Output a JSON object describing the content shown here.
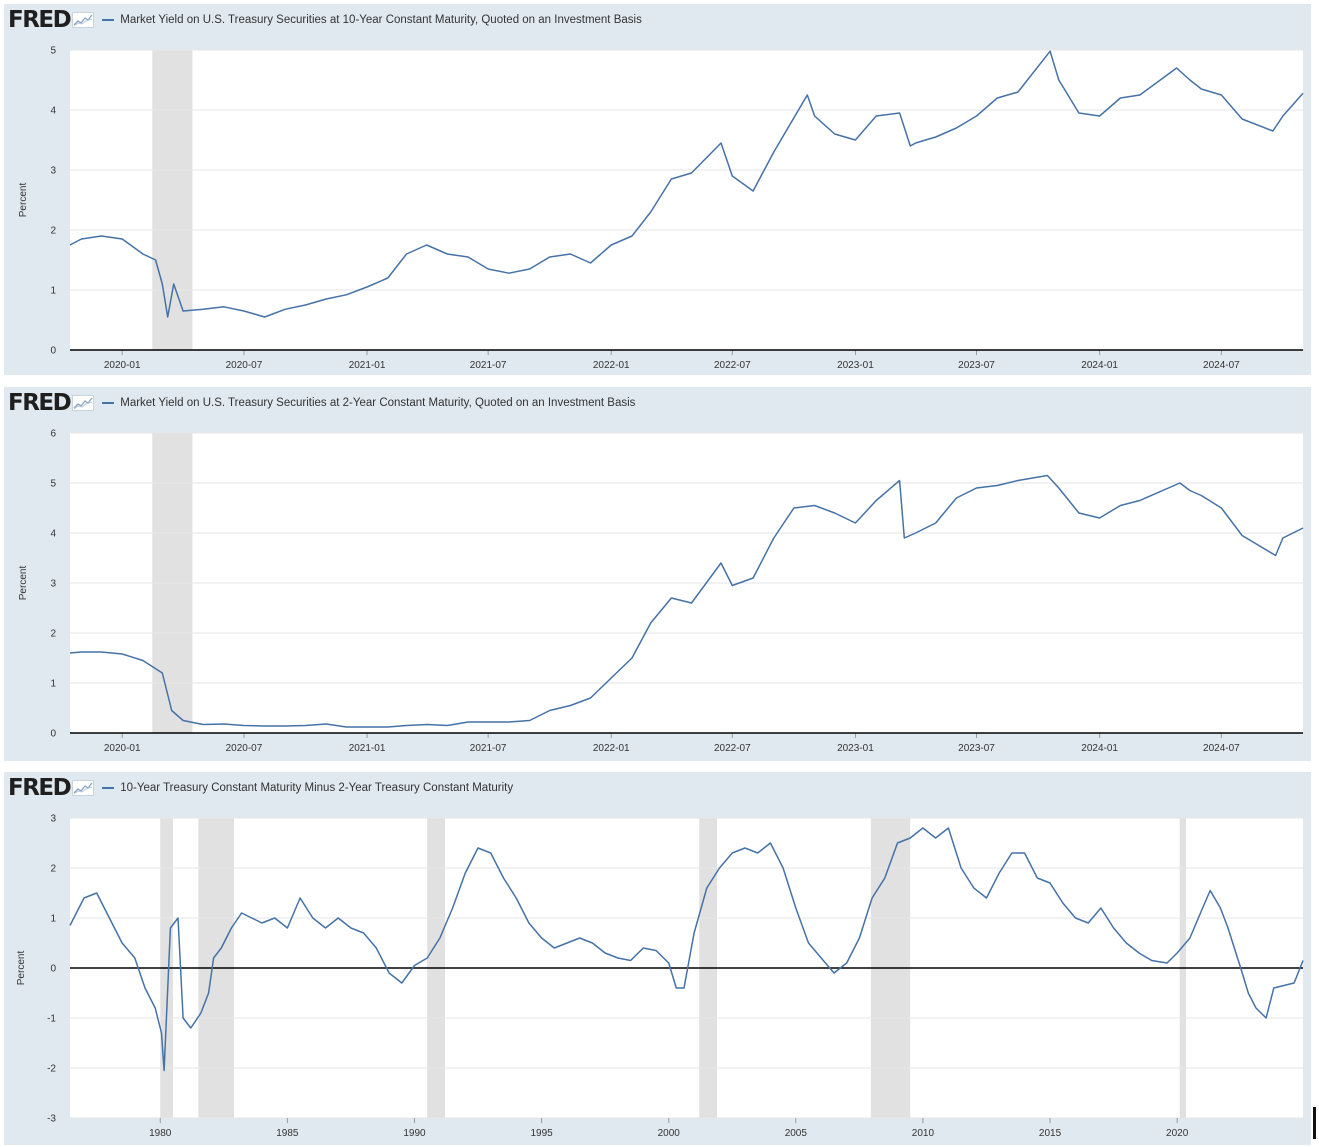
{
  "colors": {
    "panel_bg": "#e1e9f0",
    "plot_bg": "#ffffff",
    "line": "#4572a7",
    "recession": "#e1e1e1",
    "grid": "#e6e6e6",
    "axis": "#000000"
  },
  "logo": {
    "text": "FRED",
    "icon": "fred-sparkline-icon"
  },
  "chart_data": [
    {
      "type": "line",
      "title": "Market Yield on U.S. Treasury Securities at 10-Year Constant Maturity, Quoted on an Investment Basis",
      "ylabel": "Percent",
      "ylim": [
        0,
        5
      ],
      "y_ticks": [
        "0",
        "1",
        "2",
        "3",
        "4",
        "5"
      ],
      "x_ticks": [
        "2020-01",
        "2020-07",
        "2021-01",
        "2021-07",
        "2022-01",
        "2022-07",
        "2023-01",
        "2023-07",
        "2024-01",
        "2024-07"
      ],
      "xlim": [
        "2019-10-15",
        "2024-10-31"
      ],
      "recessions": [
        [
          "2020-02-15",
          "2020-04-15"
        ]
      ],
      "grid": true,
      "series": [
        {
          "name": "Market Yield on U.S. Treasury Securities at 10-Year Constant Maturity, Quoted on an Investment Basis",
          "x": [
            "2019-10-15",
            "2019-11-01",
            "2019-12-01",
            "2020-01-01",
            "2020-02-01",
            "2020-02-20",
            "2020-03-01",
            "2020-03-09",
            "2020-03-18",
            "2020-04-01",
            "2020-05-01",
            "2020-06-01",
            "2020-07-01",
            "2020-08-01",
            "2020-09-01",
            "2020-10-01",
            "2020-11-01",
            "2020-12-01",
            "2021-01-01",
            "2021-02-01",
            "2021-03-01",
            "2021-03-31",
            "2021-05-01",
            "2021-06-01",
            "2021-07-01",
            "2021-08-01",
            "2021-09-01",
            "2021-10-01",
            "2021-11-01",
            "2021-12-01",
            "2022-01-01",
            "2022-02-01",
            "2022-03-01",
            "2022-04-01",
            "2022-05-01",
            "2022-06-14",
            "2022-07-01",
            "2022-08-01",
            "2022-09-01",
            "2022-10-21",
            "2022-11-01",
            "2022-12-01",
            "2023-01-01",
            "2023-02-01",
            "2023-03-08",
            "2023-03-24",
            "2023-04-01",
            "2023-05-01",
            "2023-06-01",
            "2023-07-01",
            "2023-08-01",
            "2023-09-01",
            "2023-10-19",
            "2023-11-01",
            "2023-12-01",
            "2024-01-01",
            "2024-02-01",
            "2024-03-01",
            "2024-04-25",
            "2024-05-15",
            "2024-06-01",
            "2024-07-01",
            "2024-08-01",
            "2024-09-16",
            "2024-10-01",
            "2024-10-31"
          ],
          "y": [
            1.75,
            1.85,
            1.9,
            1.85,
            1.6,
            1.5,
            1.1,
            0.55,
            1.1,
            0.65,
            0.68,
            0.72,
            0.65,
            0.55,
            0.68,
            0.75,
            0.85,
            0.92,
            1.05,
            1.2,
            1.6,
            1.75,
            1.6,
            1.55,
            1.35,
            1.28,
            1.35,
            1.55,
            1.6,
            1.45,
            1.75,
            1.9,
            2.3,
            2.85,
            2.95,
            3.45,
            2.9,
            2.65,
            3.3,
            4.25,
            3.9,
            3.6,
            3.5,
            3.9,
            3.95,
            3.4,
            3.45,
            3.55,
            3.7,
            3.9,
            4.2,
            4.3,
            4.98,
            4.5,
            3.95,
            3.9,
            4.2,
            4.25,
            4.7,
            4.5,
            4.35,
            4.25,
            3.85,
            3.65,
            3.9,
            4.28
          ]
        }
      ]
    },
    {
      "type": "line",
      "title": "Market Yield on U.S. Treasury Securities at 2-Year Constant Maturity, Quoted on an Investment Basis",
      "ylabel": "Percent",
      "ylim": [
        0,
        6
      ],
      "y_ticks": [
        "0",
        "1",
        "2",
        "3",
        "4",
        "5",
        "6"
      ],
      "x_ticks": [
        "2020-01",
        "2020-07",
        "2021-01",
        "2021-07",
        "2022-01",
        "2022-07",
        "2023-01",
        "2023-07",
        "2024-01",
        "2024-07"
      ],
      "xlim": [
        "2019-10-15",
        "2024-10-31"
      ],
      "recessions": [
        [
          "2020-02-15",
          "2020-04-15"
        ]
      ],
      "grid": true,
      "series": [
        {
          "name": "Market Yield on U.S. Treasury Securities at 2-Year Constant Maturity, Quoted on an Investment Basis",
          "x": [
            "2019-10-15",
            "2019-11-01",
            "2019-12-01",
            "2020-01-01",
            "2020-02-01",
            "2020-03-01",
            "2020-03-15",
            "2020-04-01",
            "2020-05-01",
            "2020-06-01",
            "2020-07-01",
            "2020-08-01",
            "2020-09-01",
            "2020-10-01",
            "2020-11-01",
            "2020-12-01",
            "2021-01-01",
            "2021-02-01",
            "2021-03-01",
            "2021-04-01",
            "2021-05-01",
            "2021-06-01",
            "2021-07-01",
            "2021-08-01",
            "2021-09-01",
            "2021-10-01",
            "2021-11-01",
            "2021-12-01",
            "2022-01-01",
            "2022-02-01",
            "2022-03-01",
            "2022-04-01",
            "2022-05-01",
            "2022-06-14",
            "2022-07-01",
            "2022-08-01",
            "2022-09-01",
            "2022-10-01",
            "2022-11-01",
            "2022-12-01",
            "2023-01-01",
            "2023-02-01",
            "2023-03-08",
            "2023-03-15",
            "2023-04-01",
            "2023-05-01",
            "2023-06-01",
            "2023-07-01",
            "2023-08-01",
            "2023-09-01",
            "2023-10-15",
            "2023-11-01",
            "2023-12-01",
            "2024-01-01",
            "2024-02-01",
            "2024-03-01",
            "2024-04-30",
            "2024-05-15",
            "2024-06-01",
            "2024-07-01",
            "2024-08-01",
            "2024-09-20",
            "2024-10-01",
            "2024-10-31"
          ],
          "y": [
            1.6,
            1.62,
            1.62,
            1.58,
            1.45,
            1.2,
            0.45,
            0.25,
            0.17,
            0.18,
            0.15,
            0.14,
            0.14,
            0.15,
            0.18,
            0.12,
            0.12,
            0.12,
            0.15,
            0.17,
            0.15,
            0.22,
            0.22,
            0.22,
            0.25,
            0.45,
            0.55,
            0.7,
            1.1,
            1.5,
            2.2,
            2.7,
            2.6,
            3.4,
            2.95,
            3.1,
            3.9,
            4.5,
            4.55,
            4.4,
            4.2,
            4.65,
            5.05,
            3.9,
            4.0,
            4.2,
            4.7,
            4.9,
            4.95,
            5.05,
            5.15,
            4.9,
            4.4,
            4.3,
            4.55,
            4.65,
            5.0,
            4.85,
            4.75,
            4.5,
            3.95,
            3.55,
            3.9,
            4.1
          ]
        }
      ]
    },
    {
      "type": "line",
      "title": "10-Year Treasury Constant Maturity Minus 2-Year Treasury Constant Maturity",
      "ylabel": "Percent",
      "ylim": [
        -3,
        3
      ],
      "y_ticks": [
        "-3",
        "-2",
        "-1",
        "0",
        "1",
        "2",
        "3"
      ],
      "x_ticks": [
        "1980",
        "1985",
        "1990",
        "1995",
        "2000",
        "2005",
        "2010",
        "2015",
        "2020"
      ],
      "xlim": [
        1976.45,
        2024.95
      ],
      "recessions": [
        [
          1980.0,
          1980.5
        ],
        [
          1981.5,
          1982.9
        ],
        [
          1990.5,
          1991.2
        ],
        [
          2001.2,
          2001.9
        ],
        [
          2007.95,
          2009.5
        ],
        [
          2020.1,
          2020.35
        ]
      ],
      "zero_line": true,
      "grid": true,
      "series": [
        {
          "name": "10-Year Treasury Constant Maturity Minus 2-Year Treasury Constant Maturity",
          "x": [
            1976.45,
            1977.0,
            1977.5,
            1978.0,
            1978.5,
            1979.0,
            1979.4,
            1979.8,
            1980.05,
            1980.15,
            1980.4,
            1980.7,
            1980.9,
            1981.2,
            1981.6,
            1981.9,
            1982.1,
            1982.4,
            1982.8,
            1983.2,
            1983.6,
            1984.0,
            1984.5,
            1985.0,
            1985.5,
            1986.0,
            1986.5,
            1987.0,
            1987.5,
            1988.0,
            1988.5,
            1989.0,
            1989.5,
            1990.0,
            1990.5,
            1991.0,
            1991.5,
            1992.0,
            1992.5,
            1993.0,
            1993.5,
            1994.0,
            1994.5,
            1995.0,
            1995.5,
            1996.0,
            1996.5,
            1997.0,
            1997.5,
            1998.0,
            1998.5,
            1999.0,
            1999.5,
            2000.0,
            2000.3,
            2000.6,
            2001.0,
            2001.5,
            2002.0,
            2002.5,
            2003.0,
            2003.5,
            2004.0,
            2004.5,
            2005.0,
            2005.5,
            2006.0,
            2006.5,
            2007.0,
            2007.5,
            2008.0,
            2008.5,
            2009.0,
            2009.5,
            2010.0,
            2010.5,
            2011.0,
            2011.5,
            2012.0,
            2012.5,
            2013.0,
            2013.5,
            2014.0,
            2014.5,
            2015.0,
            2015.5,
            2016.0,
            2016.5,
            2017.0,
            2017.5,
            2018.0,
            2018.5,
            2019.0,
            2019.6,
            2020.0,
            2020.5,
            2021.0,
            2021.3,
            2021.7,
            2022.0,
            2022.5,
            2022.8,
            2023.1,
            2023.5,
            2023.8,
            2024.2,
            2024.6,
            2024.95
          ],
          "y": [
            0.85,
            1.4,
            1.5,
            1.0,
            0.5,
            0.2,
            -0.4,
            -0.8,
            -1.3,
            -2.05,
            0.8,
            1.0,
            -1.0,
            -1.2,
            -0.9,
            -0.5,
            0.2,
            0.4,
            0.8,
            1.1,
            1.0,
            0.9,
            1.0,
            0.8,
            1.4,
            1.0,
            0.8,
            1.0,
            0.8,
            0.7,
            0.4,
            -0.1,
            -0.3,
            0.05,
            0.2,
            0.6,
            1.2,
            1.9,
            2.4,
            2.3,
            1.8,
            1.4,
            0.9,
            0.6,
            0.4,
            0.5,
            0.6,
            0.5,
            0.3,
            0.2,
            0.15,
            0.4,
            0.35,
            0.1,
            -0.4,
            -0.4,
            0.7,
            1.6,
            2.0,
            2.3,
            2.4,
            2.3,
            2.5,
            2.0,
            1.2,
            0.5,
            0.2,
            -0.1,
            0.1,
            0.6,
            1.4,
            1.8,
            2.5,
            2.6,
            2.8,
            2.6,
            2.8,
            2.0,
            1.6,
            1.4,
            1.9,
            2.3,
            2.3,
            1.8,
            1.7,
            1.3,
            1.0,
            0.9,
            1.2,
            0.8,
            0.5,
            0.3,
            0.15,
            0.1,
            0.3,
            0.6,
            1.2,
            1.55,
            1.2,
            0.8,
            0.0,
            -0.5,
            -0.8,
            -1.0,
            -0.4,
            -0.35,
            -0.3,
            0.15
          ]
        }
      ]
    }
  ]
}
